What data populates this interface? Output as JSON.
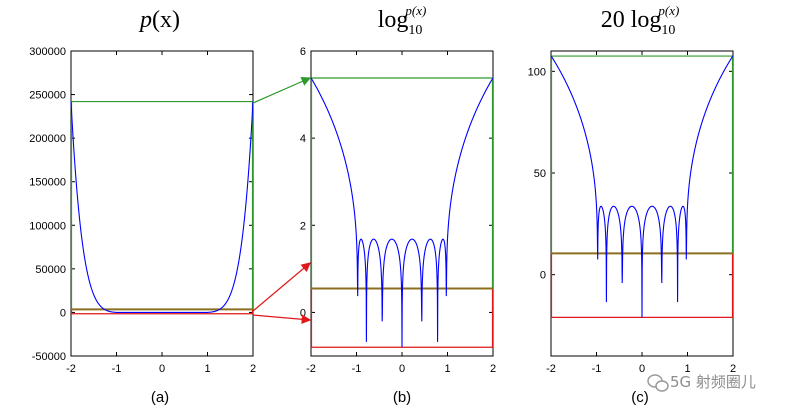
{
  "chart_data": [
    {
      "type": "line",
      "title_main": "p",
      "title_arg": "(x)",
      "subtitle": "(a)",
      "xlim": [
        -2,
        2
      ],
      "ylim": [
        -50000,
        300000
      ],
      "xticks": [
        -2,
        -1,
        0,
        1,
        2
      ],
      "xtick_labels": [
        "-2",
        "-1",
        "0",
        "1",
        "2"
      ],
      "yticks": [
        -50000,
        0,
        50000,
        100000,
        150000,
        200000,
        250000,
        300000
      ],
      "ytick_labels": [
        "-50000",
        "0",
        "50000",
        "100000",
        "150000",
        "200000",
        "250000",
        "300000"
      ],
      "series": [
        {
          "name": "p(x)",
          "color": "#0000ff",
          "kind": "abs_chebyshev_poly",
          "scale": 1,
          "clip_bottom": -1200,
          "offset": -1000
        }
      ],
      "guide_lines": [
        {
          "name": "max-level",
          "color": "#2e9a2e",
          "y": 242000
        },
        {
          "name": "passband-top",
          "color": "#8b6f1f",
          "y": 3500
        },
        {
          "name": "passband-bottom",
          "color": "#e01818",
          "y": -1500
        }
      ]
    },
    {
      "type": "line",
      "title_main": "log",
      "title_sub": "10",
      "title_sup": "p(x)",
      "subtitle": "(b)",
      "xlim": [
        -2,
        2
      ],
      "ylim": [
        -1,
        6
      ],
      "xticks": [
        -2,
        -1,
        0,
        1,
        2
      ],
      "xtick_labels": [
        "-2",
        "-1",
        "0",
        "1",
        "2"
      ],
      "yticks": [
        0,
        2,
        4,
        6
      ],
      "ytick_labels": [
        "0",
        "2",
        "4",
        "6"
      ],
      "series": [
        {
          "name": "log10 p(x)",
          "color": "#0000ff",
          "kind": "log_abs_chebyshev_poly",
          "scale": 1,
          "floor": -0.8
        }
      ],
      "guide_lines": [
        {
          "name": "max-level",
          "color": "#2e9a2e",
          "y": 5.38
        },
        {
          "name": "passband-top",
          "color": "#8b6f1f",
          "y": 0.55
        },
        {
          "name": "passband-bottom",
          "color": "#e01818",
          "y": -0.8
        }
      ]
    },
    {
      "type": "line",
      "title_main": "20 log",
      "title_sub": "10",
      "title_sup": "p(x)",
      "subtitle": "(c)",
      "xlim": [
        -2,
        2
      ],
      "ylim": [
        -40,
        110
      ],
      "xticks": [
        -2,
        -1,
        0,
        1,
        2
      ],
      "xtick_labels": [
        "-2",
        "-1",
        "0",
        "1",
        "2"
      ],
      "yticks": [
        0,
        50,
        100
      ],
      "ytick_labels": [
        "0",
        "50",
        "100"
      ],
      "series": [
        {
          "name": "20 log10 p(x)",
          "color": "#0000ff",
          "kind": "log_abs_chebyshev_poly",
          "scale": 20,
          "floor": -21
        }
      ],
      "guide_lines": [
        {
          "name": "max-level",
          "color": "#2e9a2e",
          "y": 107.5
        },
        {
          "name": "passband-top",
          "color": "#8b6f1f",
          "y": 10.5
        },
        {
          "name": "passband-bottom",
          "color": "#e01818",
          "y": -21
        }
      ]
    }
  ],
  "arrows": {
    "green_color": "#2e9a2e",
    "red_color": "#e01818"
  },
  "watermark": {
    "text": "5G 射频圈儿",
    "icon": "wechat-icon"
  }
}
